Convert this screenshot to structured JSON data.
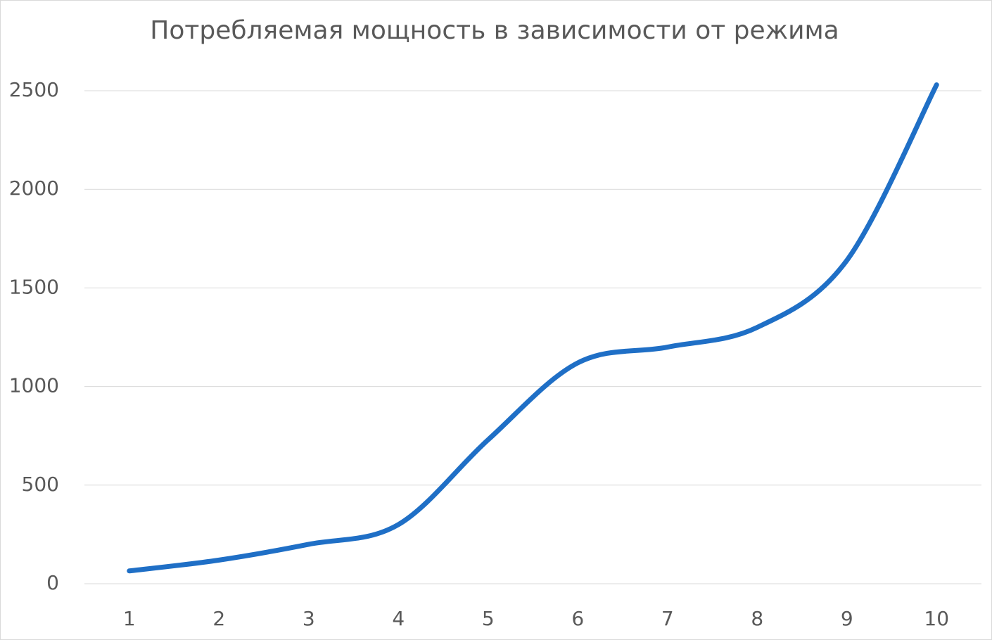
{
  "chart_data": {
    "type": "line",
    "title": "Потребляемая мощность в зависимости от режима",
    "categories": [
      "1",
      "2",
      "3",
      "4",
      "5",
      "6",
      "7",
      "8",
      "9",
      "10"
    ],
    "series": [
      {
        "color": "#1f6fc6",
        "values": [
          65,
          120,
          200,
          300,
          730,
          1120,
          1200,
          1300,
          1640,
          2530
        ]
      }
    ],
    "ylim": [
      0,
      2500
    ],
    "yticks": [
      0,
      500,
      1000,
      1500,
      2000,
      2500
    ],
    "grid": true,
    "smooth": true
  }
}
